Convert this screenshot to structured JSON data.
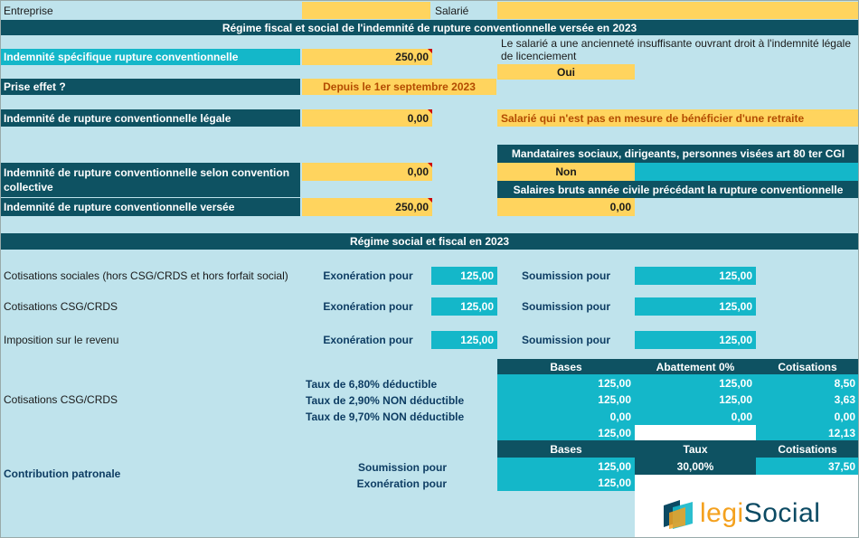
{
  "header": {
    "entreprise": "Entreprise",
    "salarie": "Salarié",
    "title": "Régime fiscal et social de l'indemnité de rupture conventionnelle versée en 2023"
  },
  "left": {
    "specifique_label": "Indemnité spécifique rupture conventionnelle",
    "specifique_value": "250,00",
    "prise_effet_label": "Prise effet ?",
    "prise_effet_value": "Depuis le 1er septembre 2023",
    "legale_label": "Indemnité de rupture conventionnelle légale",
    "legale_value": "0,00",
    "convention_label": "Indemnité de rupture conventionnelle selon convention collective",
    "convention_value": "0,00",
    "versee_label": "Indemnité de rupture conventionnelle versée",
    "versee_value": "250,00"
  },
  "right": {
    "anciennete_text": "Le salarié a une ancienneté insuffisante ouvrant droit à l'indemnité légale de licenciement",
    "anciennete_value": "Oui",
    "retraite_text": "Salarié qui n'est pas en mesure de bénéficier d'une retraite",
    "mandataires_label": "Mandataires sociaux, dirigeants, personnes visées art 80 ter CGI",
    "mandataires_value": "Non",
    "salaires_label": "Salaires bruts année civile précédant la rupture conventionnelle",
    "salaires_value": "0,00"
  },
  "regime": {
    "title": "Régime social et fiscal en 2023",
    "rows": [
      {
        "label": "Cotisations sociales (hors CSG/CRDS et hors forfait social)",
        "exo_label": "Exonération pour",
        "exo_value": "125,00",
        "sou_label": "Soumission pour",
        "sou_value": "125,00"
      },
      {
        "label": "Cotisations CSG/CRDS",
        "exo_label": "Exonération pour",
        "exo_value": "125,00",
        "sou_label": "Soumission pour",
        "sou_value": "125,00"
      },
      {
        "label": "Imposition sur le revenu",
        "exo_label": "Exonération pour",
        "exo_value": "125,00",
        "sou_label": "Soumission pour",
        "sou_value": "125,00"
      }
    ]
  },
  "csg": {
    "headers": [
      "Bases",
      "Abattement 0%",
      "Cotisations"
    ],
    "label": "Cotisations CSG/CRDS",
    "rows": [
      {
        "taux": "Taux de 6,80% déductible",
        "base": "125,00",
        "abattement": "125,00",
        "cotisation": "8,50"
      },
      {
        "taux": "Taux de 2,90% NON déductible",
        "base": "125,00",
        "abattement": "125,00",
        "cotisation": "3,63"
      },
      {
        "taux": "Taux de 9,70% NON déductible",
        "base": "0,00",
        "abattement": "0,00",
        "cotisation": "0,00"
      }
    ],
    "total_base": "125,00",
    "total_cotisation": "12,13"
  },
  "patronale": {
    "headers": [
      "Bases",
      "Taux",
      "Cotisations"
    ],
    "label": "Contribution patronale",
    "soumission_label": "Soumission pour",
    "soumission_base": "125,00",
    "taux": "30,00%",
    "cotisation": "37,50",
    "exoneration_label": "Exonération pour",
    "exoneration_base": "125,00"
  },
  "logo": {
    "prefix": "legi",
    "suffix": "Social"
  },
  "colors": {
    "dark": "#0e5262",
    "turquoise": "#14b7c9",
    "yellow": "#ffd45e",
    "light": "#bfe3ec"
  }
}
